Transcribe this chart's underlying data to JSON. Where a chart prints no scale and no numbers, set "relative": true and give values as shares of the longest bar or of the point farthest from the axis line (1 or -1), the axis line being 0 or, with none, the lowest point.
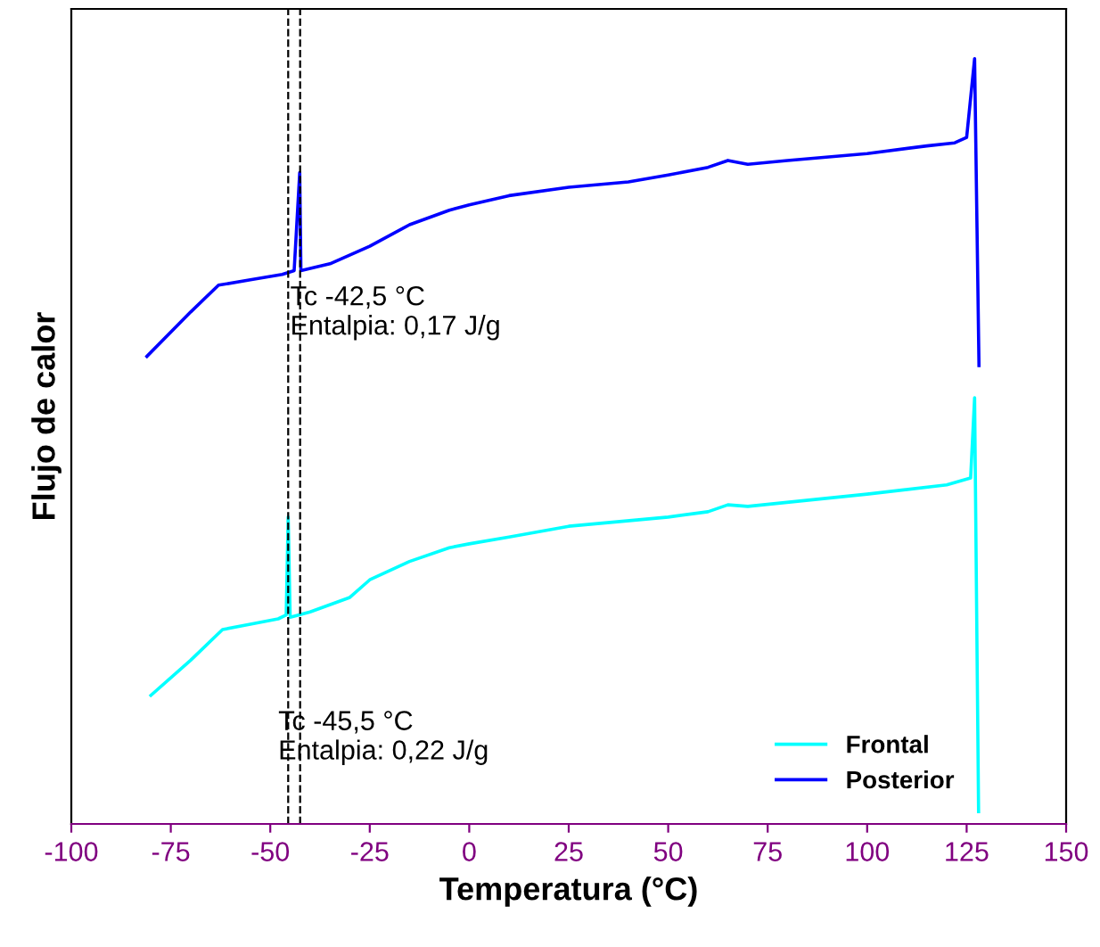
{
  "chart_data": {
    "type": "line",
    "relative": true,
    "xlabel": "Temperatura (°C)",
    "ylabel": "Flujo de calor",
    "xlim": [
      -100,
      150
    ],
    "xticks": [
      -100,
      -75,
      -50,
      -25,
      0,
      25,
      50,
      75,
      100,
      125,
      150
    ],
    "legend": "bottom right",
    "grid": false,
    "marker": "none",
    "line_style": "solid",
    "series": [
      {
        "name": "Frontal",
        "color": "#00ffff",
        "x": [
          -80,
          -70,
          -62,
          -55,
          -48,
          -46,
          -45.5,
          -45,
          -40,
          -30,
          -25,
          -15,
          -5,
          0,
          10,
          25,
          50,
          60,
          65,
          70,
          100,
          120,
          126,
          127,
          128
        ],
        "values": [
          0.168,
          0.214,
          0.254,
          0.261,
          0.268,
          0.273,
          0.401,
          0.27,
          0.277,
          0.296,
          0.319,
          0.343,
          0.361,
          0.366,
          0.375,
          0.389,
          0.401,
          0.408,
          0.417,
          0.415,
          0.431,
          0.443,
          0.452,
          0.557,
          0.016
        ]
      },
      {
        "name": "Posterior",
        "color": "#0000ff",
        "x": [
          -81,
          -70,
          -63,
          -55,
          -47,
          -44,
          -42.6,
          -42.3,
          -35,
          -25,
          -15,
          -5,
          0,
          10,
          25,
          40,
          50,
          60,
          65,
          70,
          80,
          100,
          115,
          122,
          125,
          127,
          128.1
        ],
        "values": [
          0.611,
          0.669,
          0.704,
          0.711,
          0.718,
          0.723,
          0.851,
          0.723,
          0.732,
          0.755,
          0.783,
          0.802,
          0.809,
          0.821,
          0.832,
          0.839,
          0.848,
          0.858,
          0.867,
          0.862,
          0.867,
          0.876,
          0.886,
          0.89,
          0.897,
          1.0,
          0.599
        ]
      }
    ],
    "ref_lines": [
      {
        "axis": "x",
        "value": -45.5,
        "color": "#000000",
        "line_style": "dashed"
      },
      {
        "axis": "x",
        "value": -42.5,
        "color": "#000000",
        "line_style": "dashed"
      }
    ],
    "annotations": [
      {
        "text": "Tc -42,5 °C\nEntalpia: 0,17 J/g",
        "x": -42.5,
        "y": 0.723
      },
      {
        "text": "Tc -45,5 °C\nEntalpia: 0,22 J/g",
        "x": -45.5,
        "y": 0.168
      }
    ]
  }
}
